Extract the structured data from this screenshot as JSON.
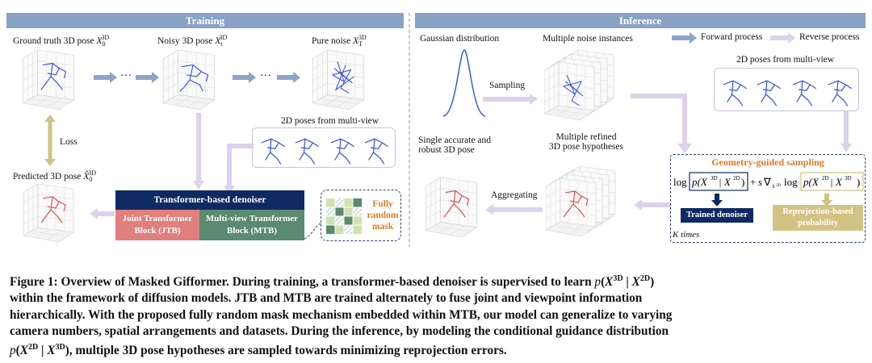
{
  "training": {
    "title": "Training",
    "gt_label": "Ground truth 3D pose",
    "gt_symbol": "X",
    "noisy_label": "Noisy 3D pose",
    "noisy_symbol": "X",
    "noise_label": "Pure noise",
    "noise_symbol": "X",
    "loss_label": "Loss",
    "pred_label": "Predicted 3D pose",
    "pred_symbol": "X̂",
    "poses2d_label": "2D poses from multi-view",
    "dots": "···",
    "denoiser_title": "Transformer-based denoiser",
    "jtb_line1": "Joint Transformer",
    "jtb_line2": "Block (JTB)",
    "mtb_line1": "Multi-view Transformer",
    "mtb_line2": "Block (MTB)",
    "mask_line1": "Fully",
    "mask_line2": "random",
    "mask_line3": "mask"
  },
  "inference": {
    "title": "Inference",
    "gaussian_label": "Gaussian distribution",
    "multi_noise_label": "Multiple noise instances",
    "sampling_label": "Sampling",
    "forward_label": "Forward process",
    "reverse_label": "Reverse process",
    "poses2d_label": "2D poses from multi-view",
    "single_line1": "Single accurate and",
    "single_line2": "robust 3D pose",
    "refined_line1": "Multiple refined",
    "refined_line2": "3D pose hypotheses",
    "aggregating_label": "Aggregating",
    "geo_title": "Geometry-guided sampling",
    "trained_denoiser": "Trained denoiser",
    "reproj_line1": "Reprojection-based",
    "reproj_line2": "probability",
    "k_times": "K times"
  },
  "caption": {
    "line1": "Figure 1: Overview of Masked Gifformer. During training, a transformer-based denoiser is supervised to learn",
    "line2": "within the framework of diffusion models. JTB and MTB are trained alternately to fuse joint and viewpoint information",
    "line3": "hierarchically. With the proposed fully random mask mechanism embedded within MTB, our model can generalize to varying",
    "line4": "camera numbers, spatial arrangements and datasets. During the inference, by modeling the conditional guidance distribution",
    "line5": ", multiple 3D pose hypotheses are sampled towards minimizing reprojection errors."
  },
  "colors": {
    "header_blue": "#8aa1c6",
    "arrow_blue": "#8da3c8",
    "arrow_lavender": "#dcd2ec",
    "navy": "#0f2a62",
    "jtb_red": "#e07f7d",
    "mtb_green": "#5a8a70",
    "gold": "#d4c284",
    "orange_text": "#e07a28",
    "pose_blue": "#3a4fe0",
    "pose_red": "#e04545"
  }
}
